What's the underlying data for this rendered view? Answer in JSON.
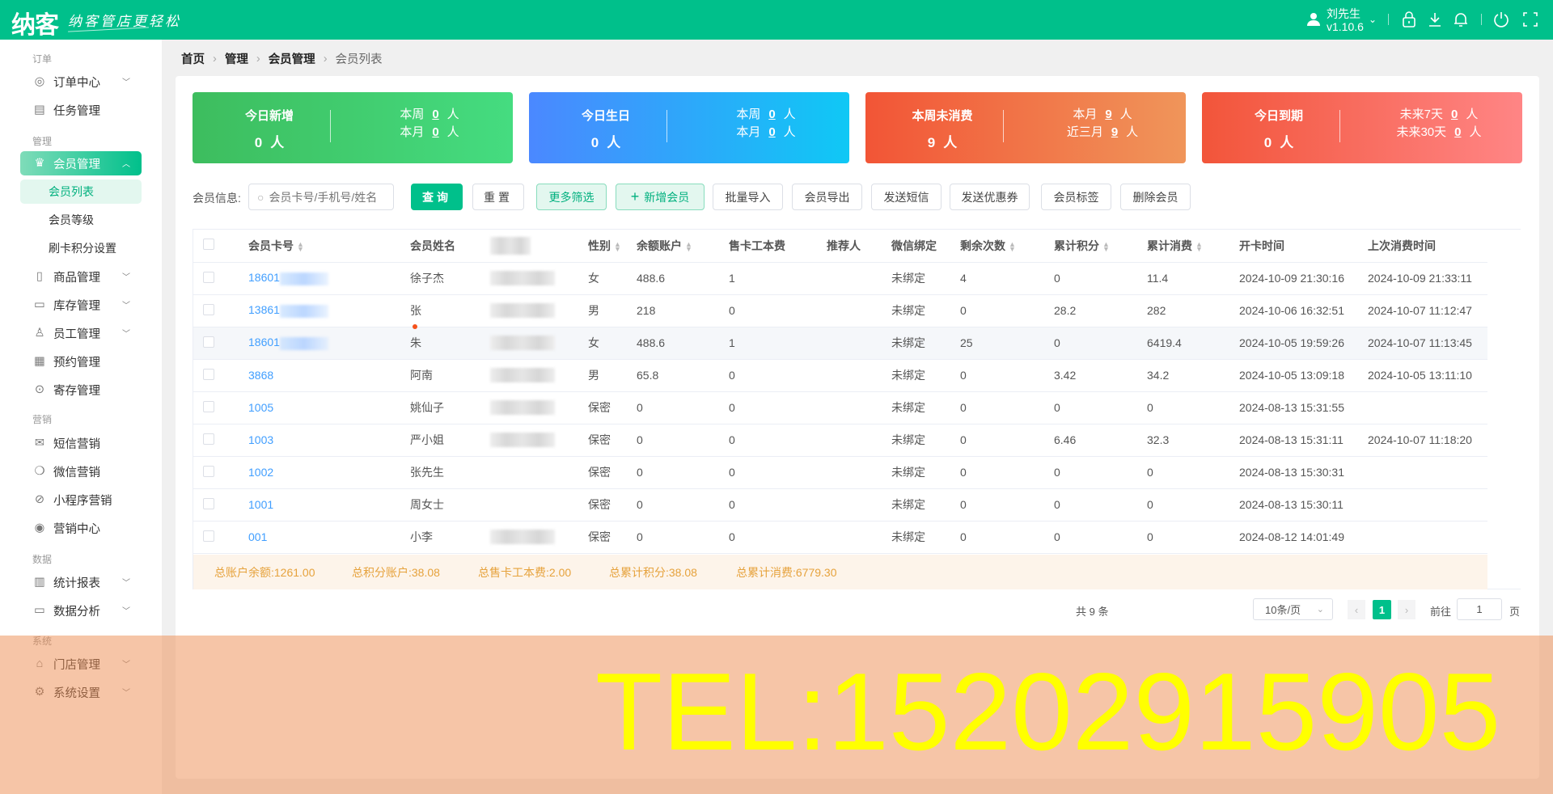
{
  "header": {
    "logo": "纳客",
    "slogan": "纳客管店更轻松",
    "user_name": "刘先生",
    "version": "v1.10.6",
    "brand_color": "#00c08b"
  },
  "sidebar": {
    "sections": [
      "订单",
      "管理",
      "营销",
      "数据",
      "系统"
    ],
    "items": [
      {
        "label": "订单中心",
        "icon": "globe-icon",
        "chevron": true
      },
      {
        "label": "任务管理",
        "icon": "task-icon"
      },
      {
        "label": "会员管理",
        "icon": "crown-icon",
        "chevron": true,
        "active": true
      },
      {
        "label": "商品管理",
        "icon": "grid-icon",
        "chevron": true
      },
      {
        "label": "库存管理",
        "icon": "box-icon",
        "chevron": true
      },
      {
        "label": "员工管理",
        "icon": "user-icon",
        "chevron": true
      },
      {
        "label": "预约管理",
        "icon": "calendar-icon"
      },
      {
        "label": "寄存管理",
        "icon": "deposit-icon"
      },
      {
        "label": "短信营销",
        "icon": "mail-icon"
      },
      {
        "label": "微信营销",
        "icon": "wechat-icon"
      },
      {
        "label": "小程序营销",
        "icon": "miniprogram-icon"
      },
      {
        "label": "营销中心",
        "icon": "target-icon"
      },
      {
        "label": "统计报表",
        "icon": "bar-chart-icon",
        "chevron": true
      },
      {
        "label": "数据分析",
        "icon": "monitor-icon",
        "chevron": true
      },
      {
        "label": "门店管理",
        "icon": "store-icon",
        "chevron": true
      },
      {
        "label": "系统设置",
        "icon": "gear-icon",
        "chevron": true
      }
    ],
    "sub_items": [
      {
        "label": "会员列表",
        "active": true
      },
      {
        "label": "会员等级"
      },
      {
        "label": "刷卡积分设置"
      }
    ]
  },
  "breadcrumb": [
    "首页",
    "管理",
    "会员管理",
    "会员列表"
  ],
  "stats": [
    {
      "title": "今日新增",
      "value": "0",
      "unit": "人",
      "r1_label": "本周",
      "r1_value": "0",
      "r2_label": "本月",
      "r2_value": "0",
      "colors": [
        "#3dbd5e",
        "#45dc80"
      ]
    },
    {
      "title": "今日生日",
      "value": "0",
      "unit": "人",
      "r1_label": "本周",
      "r1_value": "0",
      "r2_label": "本月",
      "r2_value": "0",
      "colors": [
        "#4b88ff",
        "#0fc8f5"
      ]
    },
    {
      "title": "本周未消费",
      "value": "9",
      "unit": "人",
      "r1_label": "本月",
      "r1_value": "9",
      "r2_label": "近三月",
      "r2_value": "9",
      "colors": [
        "#f25536",
        "#f0955a"
      ]
    },
    {
      "title": "今日到期",
      "value": "0",
      "unit": "人",
      "r1_label": "未来7天",
      "r1_value": "0",
      "r2_label": "未来30天",
      "r2_value": "0",
      "colors": [
        "#f2553a",
        "#ff8585"
      ]
    }
  ],
  "filter": {
    "label": "会员信息:",
    "placeholder": "会员卡号/手机号/姓名",
    "value": ""
  },
  "buttons": {
    "query": "查询",
    "reset": "重置",
    "more": "更多筛选",
    "add": "新增会员",
    "import": "批量导入",
    "export": "会员导出",
    "sms": "发送短信",
    "coupon": "发送优惠券",
    "tag": "会员标签",
    "delete": "删除会员"
  },
  "table": {
    "columns": [
      "会员卡号",
      "会员姓名",
      "",
      "性别",
      "余额账户",
      "售卡工本费",
      "推荐人",
      "微信绑定",
      "剩余次数",
      "累计积分",
      "累计消费",
      "开卡时间",
      "上次消费时间"
    ],
    "rows": [
      {
        "card": "18601",
        "card_masked": true,
        "name": "徐子杰",
        "phone_masked": true,
        "gender": "女",
        "balance": "488.6",
        "fee": "1",
        "referrer": "",
        "wechat": "未绑定",
        "times": "4",
        "points": "0",
        "spent": "11.4",
        "opened": "2024-10-09 21:30:16",
        "last": "2024-10-09 21:33:11"
      },
      {
        "card": "13861",
        "card_masked": true,
        "name": "张",
        "phone_masked": true,
        "gender": "男",
        "balance": "218",
        "fee": "0",
        "referrer": "",
        "wechat": "未绑定",
        "times": "0",
        "points": "28.2",
        "spent": "282",
        "opened": "2024-10-06 16:32:51",
        "last": "2024-10-07 11:12:47"
      },
      {
        "card": "18601",
        "card_masked": true,
        "name": "朱",
        "dot": true,
        "phone_masked": true,
        "gender": "女",
        "balance": "488.6",
        "fee": "1",
        "referrer": "",
        "wechat": "未绑定",
        "times": "25",
        "points": "0",
        "spent": "6419.4",
        "opened": "2024-10-05 19:59:26",
        "last": "2024-10-07 11:13:45",
        "highlight": true
      },
      {
        "card": "3868",
        "name": "阿南",
        "phone_masked": true,
        "gender": "男",
        "balance": "65.8",
        "fee": "0",
        "referrer": "",
        "wechat": "未绑定",
        "times": "0",
        "points": "3.42",
        "spent": "34.2",
        "opened": "2024-10-05 13:09:18",
        "last": "2024-10-05 13:11:10"
      },
      {
        "card": "1005",
        "name": "姚仙子",
        "phone_masked": true,
        "gender": "保密",
        "balance": "0",
        "fee": "0",
        "referrer": "",
        "wechat": "未绑定",
        "times": "0",
        "points": "0",
        "spent": "0",
        "opened": "2024-08-13 15:31:55",
        "last": ""
      },
      {
        "card": "1003",
        "name": "严小姐",
        "phone_masked": true,
        "gender": "保密",
        "balance": "0",
        "fee": "0",
        "referrer": "",
        "wechat": "未绑定",
        "times": "0",
        "points": "6.46",
        "spent": "32.3",
        "opened": "2024-08-13 15:31:11",
        "last": "2024-10-07 11:18:20"
      },
      {
        "card": "1002",
        "name": "张先生",
        "gender": "保密",
        "balance": "0",
        "fee": "0",
        "referrer": "",
        "wechat": "未绑定",
        "times": "0",
        "points": "0",
        "spent": "0",
        "opened": "2024-08-13 15:30:31",
        "last": ""
      },
      {
        "card": "1001",
        "name": "周女士",
        "gender": "保密",
        "balance": "0",
        "fee": "0",
        "referrer": "",
        "wechat": "未绑定",
        "times": "0",
        "points": "0",
        "spent": "0",
        "opened": "2024-08-13 15:30:11",
        "last": ""
      },
      {
        "card": "001",
        "name": "小李",
        "phone_masked": true,
        "gender": "保密",
        "balance": "0",
        "fee": "0",
        "referrer": "",
        "wechat": "未绑定",
        "times": "0",
        "points": "0",
        "spent": "0",
        "opened": "2024-08-12 14:01:49",
        "last": ""
      }
    ],
    "summary": [
      "总账户余额:1261.00",
      "总积分账户:38.08",
      "总售卡工本费:2.00",
      "总累计积分:38.08",
      "总累计消费:6779.30"
    ]
  },
  "pagination": {
    "total": "共 9 条",
    "page_size": "10条/页",
    "current": "1",
    "goto_label": "前往",
    "goto_value": "1",
    "page_suffix": "页"
  },
  "watermark": "TEL:15202915905"
}
